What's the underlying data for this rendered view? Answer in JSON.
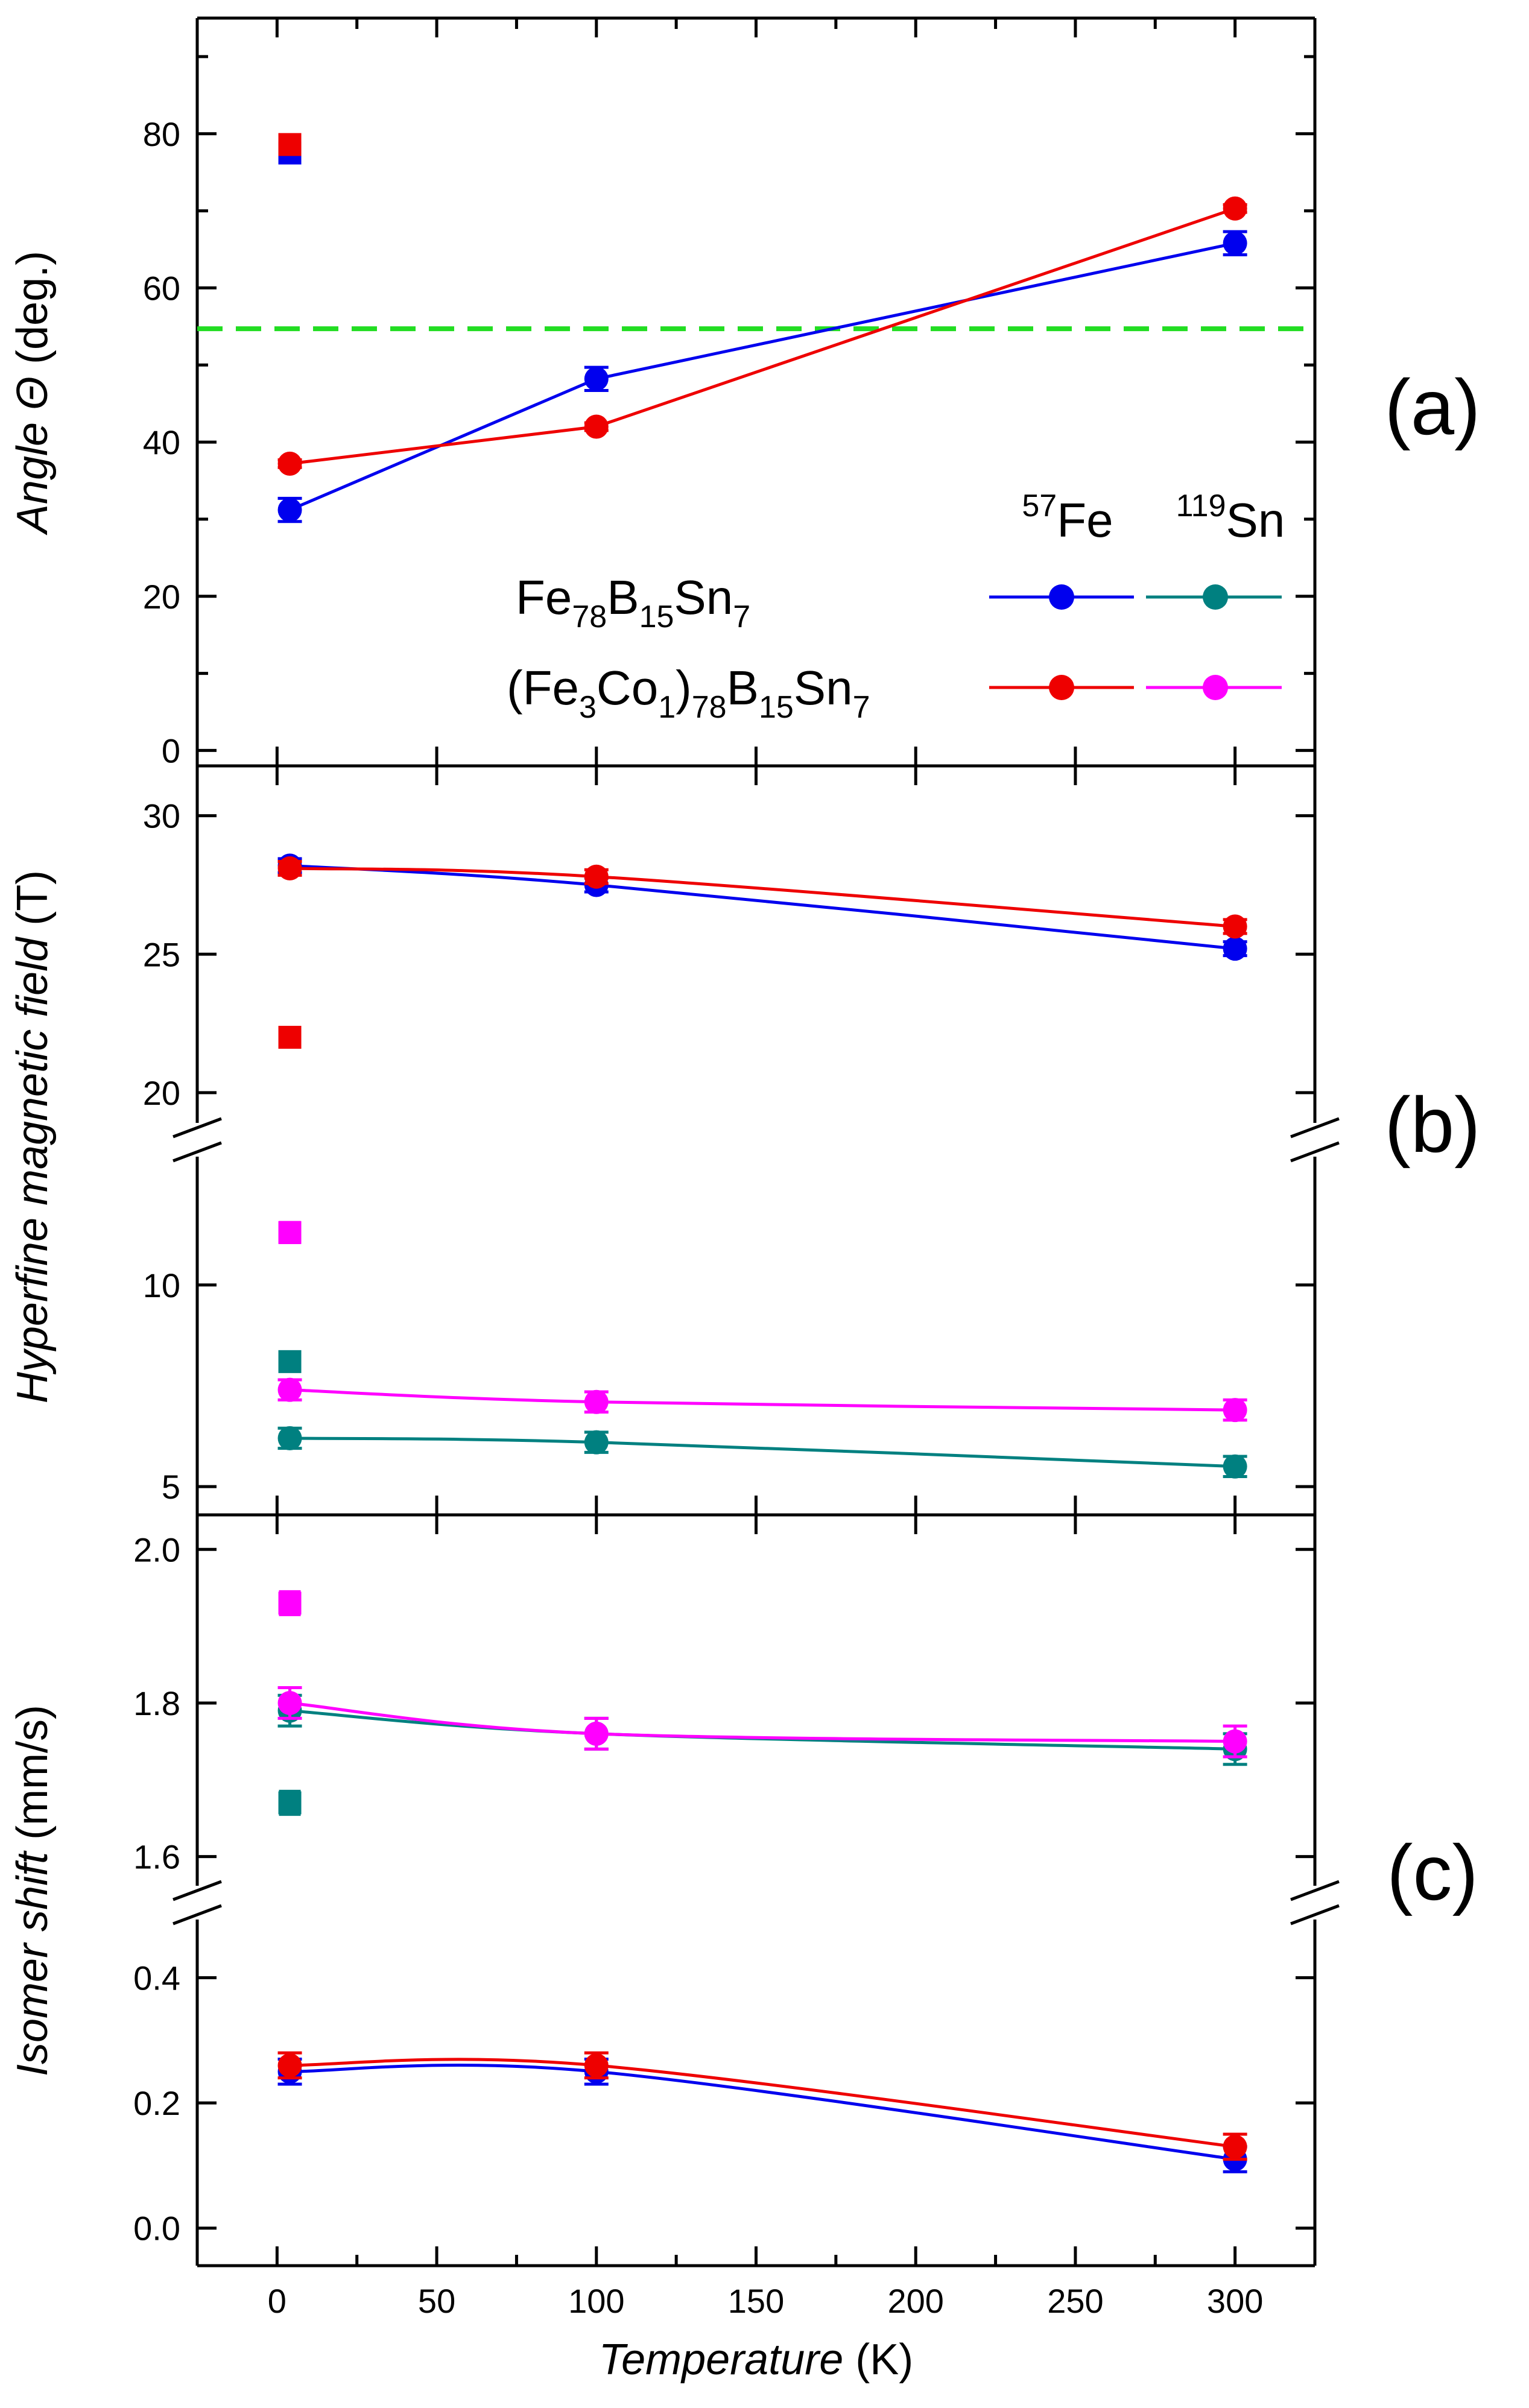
{
  "chart_data": {
    "type": "scatter",
    "x_label": "Temperature",
    "x_unit": "(K)",
    "x_ticks": [
      0,
      50,
      100,
      150,
      200,
      250,
      300
    ],
    "x_range": [
      -25,
      325
    ],
    "legend": {
      "columns": [
        "57Fe",
        "119Sn"
      ],
      "column_sup": [
        "57",
        "119"
      ],
      "column_base": [
        "Fe",
        "Sn"
      ],
      "rows": [
        {
          "label": "Fe78B15Sn7",
          "parts": [
            [
              "Fe",
              "78"
            ],
            [
              "B",
              "15"
            ],
            [
              "Sn",
              "7"
            ]
          ],
          "colors": [
            "#0000ee",
            "#008080"
          ]
        },
        {
          "label": "(Fe3Co1)78B15Sn7",
          "parts": [
            [
              "(Fe",
              "3"
            ],
            [
              "Co",
              "1"
            ],
            [
              ")",
              "78"
            ],
            [
              "B",
              "15"
            ],
            [
              "Sn",
              "7"
            ]
          ],
          "colors": [
            "#ee0000",
            "#ff00ff"
          ]
        }
      ]
    },
    "panels": [
      {
        "id": "a",
        "label": "(a)",
        "y_label": "Angle Θ",
        "y_unit": "(deg.)",
        "y_range": [
          -2,
          95
        ],
        "y_ticks": [
          0,
          20,
          40,
          60,
          80
        ],
        "reference_line": {
          "y": 54.7,
          "color": "#22dd22",
          "style": "dashed"
        },
        "series": [
          {
            "name": "Fe78B15Sn7 57Fe",
            "color": "#0000ee",
            "x": [
              4,
              100,
              300
            ],
            "y": [
              31.2,
              48.2,
              65.8
            ],
            "err": [
              1.5,
              1.5,
              1.5
            ]
          },
          {
            "name": "(Fe3Co1)78B15Sn7 57Fe",
            "color": "#ee0000",
            "x": [
              4,
              100,
              300
            ],
            "y": [
              37.2,
              42,
              70.3
            ],
            "err": [
              0.5,
              0.5,
              0.5
            ]
          }
        ],
        "squares": [
          {
            "color": "#0000ee",
            "x": 4,
            "y": 77.5,
            "err": 0.8
          },
          {
            "color": "#ee0000",
            "x": 4,
            "y": 78.6,
            "err": 0.8
          }
        ]
      },
      {
        "id": "b",
        "label": "(b)",
        "y_label": "Hyperfine magnetic field",
        "y_unit": "(T)",
        "segments": [
          {
            "y_range": [
              18.3,
              31.8
            ],
            "y_ticks": [
              20,
              25,
              30
            ]
          },
          {
            "y_range": [
              4.3,
              13.6
            ],
            "y_ticks": [
              5,
              10
            ]
          }
        ],
        "series": [
          {
            "name": "Fe78B15Sn7 57Fe",
            "color": "#0000ee",
            "segment": 0,
            "x": [
              4,
              100,
              300
            ],
            "y": [
              28.2,
              27.5,
              25.2
            ],
            "err": [
              0.25,
              0.25,
              0.25
            ]
          },
          {
            "name": "(Fe3Co1)78B15Sn7 57Fe",
            "color": "#ee0000",
            "segment": 0,
            "x": [
              4,
              100,
              300
            ],
            "y": [
              28.1,
              27.8,
              26
            ],
            "err": [
              0.25,
              0.25,
              0.25
            ]
          },
          {
            "name": "Fe78B15Sn7 119Sn",
            "color": "#008080",
            "segment": 1,
            "x": [
              4,
              100,
              300
            ],
            "y": [
              6.2,
              6.1,
              5.5
            ],
            "err": [
              0.25,
              0.25,
              0.25
            ]
          },
          {
            "name": "(Fe3Co1)78B15Sn7 119Sn",
            "color": "#ff00ff",
            "segment": 1,
            "x": [
              4,
              100,
              300
            ],
            "y": [
              7.4,
              7.1,
              6.9
            ],
            "err": [
              0.25,
              0.25,
              0.25
            ]
          }
        ],
        "squares": [
          {
            "color": "#ee0000",
            "segment": 0,
            "x": 4,
            "y": 22,
            "err": 0
          },
          {
            "color": "#ff00ff",
            "segment": 1,
            "x": 4,
            "y": 11.3,
            "err": 0.25
          },
          {
            "color": "#008080",
            "segment": 1,
            "x": 4,
            "y": 8.1,
            "err": 0.2
          }
        ]
      },
      {
        "id": "c",
        "label": "(c)",
        "y_label": "Isomer shift",
        "y_unit": "(mm/s)",
        "segments": [
          {
            "y_range": [
              1.54,
              2.045
            ],
            "y_ticks": [
              1.6,
              1.8,
              2.0
            ]
          },
          {
            "y_range": [
              -0.06,
              0.52
            ],
            "y_ticks": [
              0.0,
              0.2,
              0.4
            ]
          }
        ],
        "series": [
          {
            "name": "Fe78B15Sn7 119Sn",
            "color": "#008080",
            "segment": 0,
            "x": [
              4,
              100,
              300
            ],
            "y": [
              1.79,
              1.76,
              1.74
            ],
            "err": [
              0.02,
              0.02,
              0.02
            ]
          },
          {
            "name": "(Fe3Co1)78B15Sn7 119Sn",
            "color": "#ff00ff",
            "segment": 0,
            "x": [
              4,
              100,
              300
            ],
            "y": [
              1.8,
              1.76,
              1.75
            ],
            "err": [
              0.02,
              0.02,
              0.02
            ]
          },
          {
            "name": "Fe78B15Sn7 57Fe",
            "color": "#0000ee",
            "segment": 1,
            "x": [
              4,
              100,
              300
            ],
            "y": [
              0.25,
              0.25,
              0.11
            ],
            "err": [
              0.02,
              0.02,
              0.02
            ]
          },
          {
            "name": "(Fe3Co1)78B15Sn7 57Fe",
            "color": "#ee0000",
            "segment": 1,
            "x": [
              4,
              100,
              300
            ],
            "y": [
              0.26,
              0.26,
              0.13
            ],
            "err": [
              0.02,
              0.02,
              0.02
            ]
          }
        ],
        "squares": [
          {
            "color": "#ff00ff",
            "segment": 0,
            "x": 4,
            "y": 1.93,
            "err": 0.015
          },
          {
            "color": "#008080",
            "segment": 0,
            "x": 4,
            "y": 1.67,
            "err": 0.015
          }
        ]
      }
    ]
  }
}
